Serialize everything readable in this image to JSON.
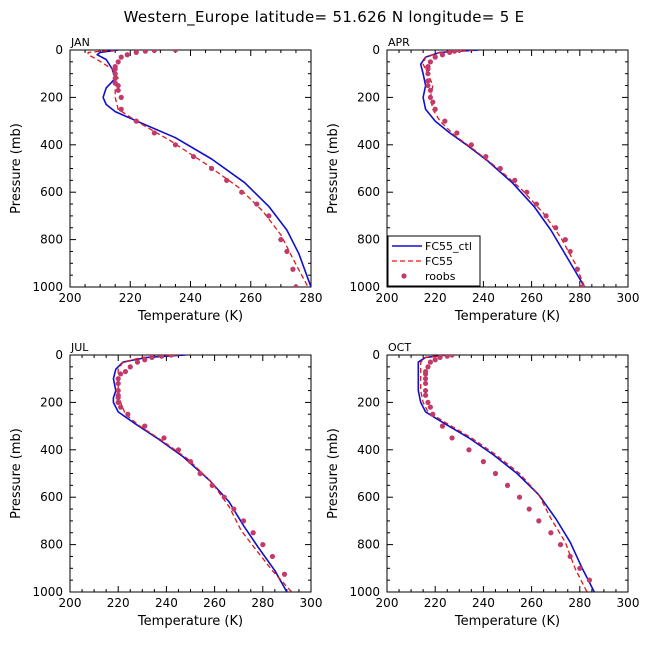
{
  "title": "Western_Europe  latitude= 51.626 N longitude= 5 E",
  "colors": {
    "ctl": "#1010cc",
    "fc55": "#e01818",
    "roobs": "#c23a6a",
    "axis": "#000000"
  },
  "chart_data": [
    {
      "type": "line",
      "panel_label": "JAN",
      "xlabel": "Temperature (K)",
      "ylabel": "Pressure (mb)",
      "xlim": [
        200,
        280
      ],
      "ylim": [
        1000,
        0
      ],
      "x_ticks": [
        200,
        220,
        240,
        260,
        280
      ],
      "y_ticks": [
        0,
        200,
        400,
        600,
        800,
        1000
      ],
      "series": [
        {
          "name": "FC55_ctl",
          "style": "solid",
          "x": [
            216,
            210,
            209,
            212,
            214,
            215,
            212,
            211,
            212,
            215,
            224,
            235,
            247,
            258,
            266,
            272,
            276,
            280
          ],
          "y": [
            0,
            10,
            20,
            40,
            80,
            120,
            160,
            200,
            230,
            260,
            310,
            370,
            460,
            560,
            660,
            760,
            860,
            1000
          ]
        },
        {
          "name": "FC55",
          "style": "dashed",
          "x": [
            215,
            206,
            206,
            209,
            214,
            216,
            215,
            215,
            216,
            222,
            233,
            245,
            256,
            264,
            270,
            274,
            279
          ],
          "y": [
            0,
            10,
            20,
            40,
            80,
            120,
            160,
            200,
            250,
            300,
            380,
            480,
            580,
            680,
            780,
            880,
            1000
          ]
        },
        {
          "name": "roobs",
          "style": "markers",
          "x": [
            235,
            228,
            225,
            222,
            219,
            217,
            216,
            215,
            215,
            215,
            215,
            215,
            216,
            216,
            217,
            217,
            222,
            228,
            235,
            241,
            247,
            252,
            257,
            262,
            266,
            270,
            272,
            274,
            275
          ],
          "y": [
            0,
            2,
            5,
            10,
            20,
            30,
            50,
            70,
            80,
            100,
            120,
            140,
            150,
            170,
            200,
            250,
            300,
            350,
            400,
            450,
            500,
            550,
            600,
            650,
            700,
            800,
            850,
            925,
            1000
          ]
        }
      ]
    },
    {
      "type": "line",
      "panel_label": "APR",
      "xlabel": "Temperature (K)",
      "ylabel": "Pressure (mb)",
      "xlim": [
        200,
        300
      ],
      "ylim": [
        1000,
        0
      ],
      "x_ticks": [
        200,
        220,
        240,
        260,
        280,
        300
      ],
      "y_ticks": [
        0,
        200,
        400,
        600,
        800,
        1000
      ],
      "legend": {
        "position": "bottom-left",
        "entries": [
          "FC55_ctl",
          "FC55",
          "roobs"
        ]
      },
      "series": [
        {
          "name": "FC55_ctl",
          "style": "solid",
          "x": [
            238,
            222,
            216,
            214,
            215,
            216,
            215,
            216,
            220,
            226,
            233,
            242,
            252,
            261,
            268,
            275,
            282
          ],
          "y": [
            0,
            10,
            30,
            60,
            100,
            150,
            200,
            250,
            300,
            350,
            400,
            470,
            560,
            660,
            760,
            880,
            1000
          ]
        },
        {
          "name": "FC55",
          "style": "dashed",
          "x": [
            236,
            222,
            216,
            215,
            217,
            219,
            218,
            219,
            222,
            228,
            236,
            246,
            256,
            265,
            272,
            278,
            282
          ],
          "y": [
            0,
            10,
            30,
            60,
            100,
            150,
            200,
            250,
            300,
            360,
            420,
            500,
            590,
            690,
            790,
            900,
            1000
          ]
        },
        {
          "name": "roobs",
          "style": "markers",
          "x": [
            230,
            228,
            226,
            223,
            220,
            218,
            217,
            217,
            217,
            217,
            217,
            218,
            218,
            219,
            220,
            224,
            229,
            235,
            241,
            247,
            253,
            258,
            262,
            266,
            270,
            274,
            276,
            279,
            281
          ],
          "y": [
            0,
            5,
            10,
            20,
            30,
            50,
            70,
            80,
            100,
            130,
            150,
            170,
            200,
            220,
            250,
            300,
            350,
            400,
            450,
            500,
            550,
            600,
            650,
            700,
            750,
            800,
            850,
            925,
            1000
          ]
        }
      ]
    },
    {
      "type": "line",
      "panel_label": "JUL",
      "xlabel": "Temperature (K)",
      "ylabel": "Pressure (mb)",
      "xlim": [
        200,
        300
      ],
      "ylim": [
        1000,
        0
      ],
      "x_ticks": [
        200,
        220,
        240,
        260,
        280,
        300
      ],
      "y_ticks": [
        0,
        200,
        400,
        600,
        800,
        1000
      ],
      "series": [
        {
          "name": "FC55_ctl",
          "style": "solid",
          "x": [
            248,
            232,
            222,
            219,
            218,
            219,
            218,
            218,
            220,
            227,
            236,
            247,
            258,
            266,
            272,
            278,
            285,
            290
          ],
          "y": [
            0,
            10,
            30,
            60,
            100,
            150,
            180,
            200,
            240,
            290,
            350,
            430,
            530,
            620,
            720,
            810,
            910,
            1000
          ]
        },
        {
          "name": "FC55",
          "style": "dashed",
          "x": [
            245,
            230,
            222,
            220,
            220,
            220,
            221,
            223,
            229,
            238,
            249,
            259,
            266,
            271,
            277,
            284,
            292
          ],
          "y": [
            0,
            10,
            30,
            60,
            100,
            150,
            200,
            250,
            300,
            360,
            440,
            540,
            640,
            740,
            820,
            910,
            1000
          ]
        },
        {
          "name": "roobs",
          "style": "markers",
          "x": [
            242,
            238,
            234,
            231,
            228,
            225,
            223,
            221,
            220,
            220,
            220,
            220,
            220,
            220,
            221,
            224,
            231,
            239,
            245,
            250,
            254,
            259,
            264,
            268,
            272,
            276,
            280,
            284,
            289
          ],
          "y": [
            0,
            5,
            10,
            20,
            30,
            50,
            70,
            80,
            100,
            120,
            150,
            170,
            180,
            200,
            220,
            250,
            300,
            350,
            400,
            450,
            500,
            550,
            600,
            650,
            700,
            750,
            800,
            850,
            925
          ]
        }
      ]
    },
    {
      "type": "line",
      "panel_label": "OCT",
      "xlabel": "Temperature (K)",
      "ylabel": "Pressure (mb)",
      "xlim": [
        200,
        300
      ],
      "ylim": [
        1000,
        0
      ],
      "x_ticks": [
        200,
        220,
        240,
        260,
        280,
        300
      ],
      "y_ticks": [
        0,
        200,
        400,
        600,
        800,
        1000
      ],
      "series": [
        {
          "name": "FC55_ctl",
          "style": "solid",
          "x": [
            225,
            216,
            213,
            213,
            213,
            213,
            214,
            216,
            224,
            234,
            244,
            254,
            263,
            270,
            276,
            281,
            286
          ],
          "y": [
            0,
            10,
            30,
            60,
            100,
            150,
            200,
            240,
            290,
            350,
            420,
            500,
            590,
            690,
            790,
            900,
            1000
          ]
        },
        {
          "name": "FC55",
          "style": "dashed",
          "x": [
            224,
            216,
            214,
            214,
            214,
            214,
            215,
            217,
            225,
            235,
            245,
            255,
            263,
            268,
            274,
            278,
            283
          ],
          "y": [
            0,
            10,
            30,
            60,
            100,
            150,
            200,
            240,
            290,
            350,
            420,
            500,
            590,
            690,
            790,
            900,
            1000
          ]
        },
        {
          "name": "roobs",
          "style": "markers",
          "x": [
            227,
            225,
            222,
            220,
            218,
            217,
            216,
            216,
            216,
            216,
            216,
            216,
            217,
            218,
            219,
            223,
            227,
            234,
            240,
            245,
            250,
            255,
            259,
            263,
            268,
            272,
            276,
            280,
            284
          ],
          "y": [
            0,
            5,
            10,
            20,
            30,
            50,
            70,
            80,
            100,
            120,
            150,
            170,
            200,
            220,
            250,
            300,
            350,
            400,
            450,
            500,
            550,
            600,
            650,
            700,
            750,
            800,
            850,
            900,
            950
          ]
        }
      ]
    }
  ]
}
